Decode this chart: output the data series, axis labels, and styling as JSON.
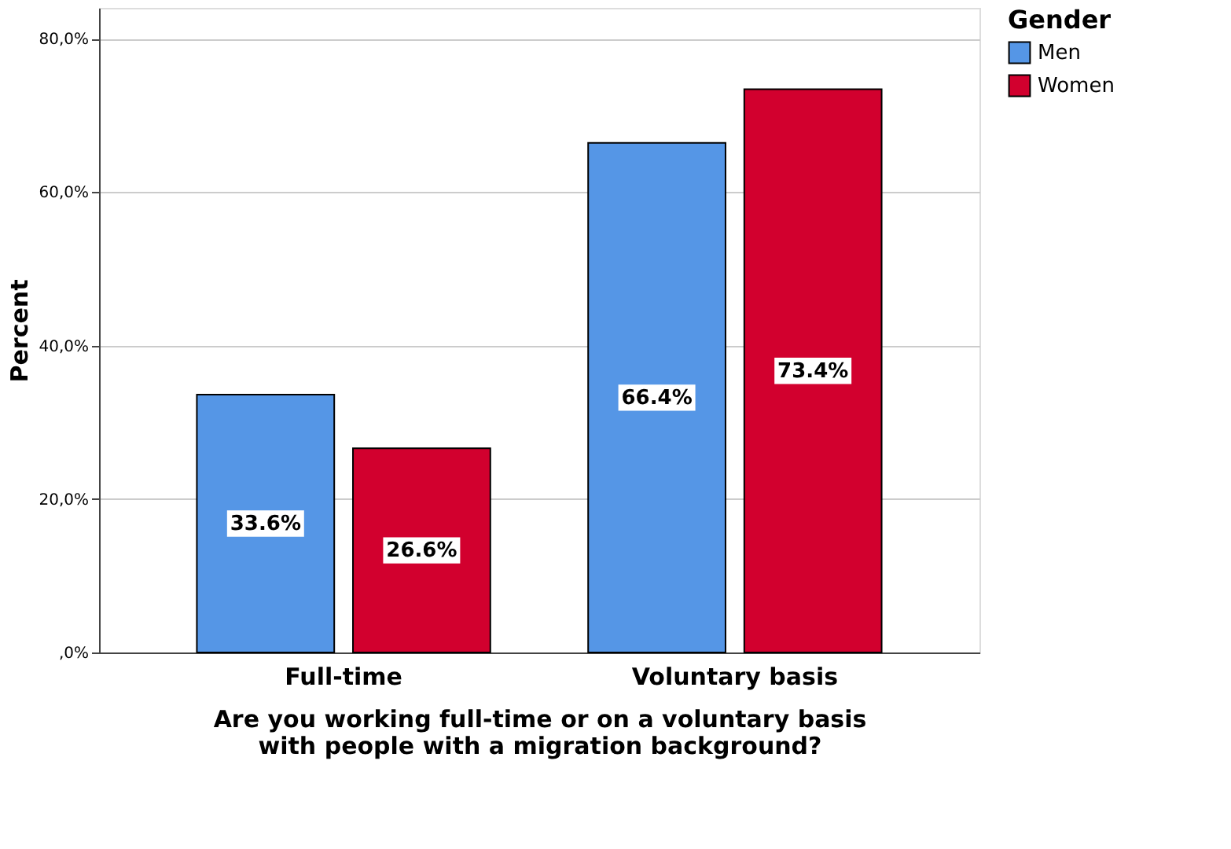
{
  "chart_data": {
    "type": "bar",
    "categories": [
      "Full-time",
      "Voluntary basis"
    ],
    "series": [
      {
        "name": "Men",
        "color": "#5596e6",
        "values": [
          33.6,
          66.4
        ],
        "value_labels": [
          "33.6%",
          "66.4%"
        ]
      },
      {
        "name": "Women",
        "color": "#d2002e",
        "values": [
          26.6,
          73.4
        ],
        "value_labels": [
          "26.6%",
          "73.4%"
        ]
      }
    ],
    "xlabel": "Are you working full-time or on a voluntary basis\nwith people with a migration background?",
    "ylabel": "Percent",
    "legend_title": "Gender",
    "legend": "top right",
    "ylim": [
      0,
      84
    ],
    "yticks": [
      {
        "value": 0,
        "label": ",0%"
      },
      {
        "value": 20,
        "label": "20,0%"
      },
      {
        "value": 40,
        "label": "40,0%"
      },
      {
        "value": 60,
        "label": "60,0%"
      },
      {
        "value": 80,
        "label": "80,0%"
      }
    ],
    "grid": "y"
  }
}
